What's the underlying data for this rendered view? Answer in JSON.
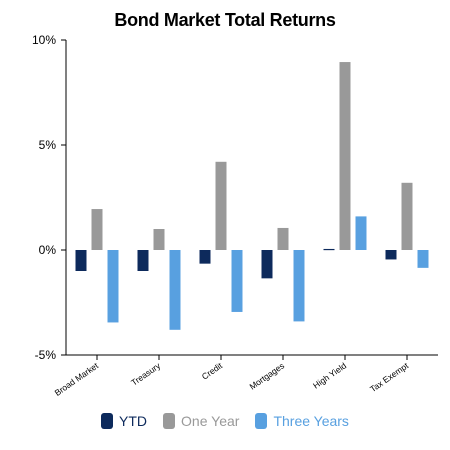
{
  "chart_data": {
    "type": "bar",
    "title": "Bond Market Total Returns",
    "categories": [
      "Broad Market",
      "Treasury",
      "Credit",
      "Mortgages",
      "High Yield",
      "Tax Exempt"
    ],
    "series": [
      {
        "name": "YTD",
        "color": "#0d2a5c",
        "values": [
          -1.0,
          -1.0,
          -0.65,
          -1.35,
          0.05,
          -0.45
        ]
      },
      {
        "name": "One Year",
        "color": "#999999",
        "values": [
          1.95,
          1.0,
          4.2,
          1.05,
          8.95,
          3.2
        ]
      },
      {
        "name": "Three Years",
        "color": "#58a0e0",
        "values": [
          -3.45,
          -3.8,
          -2.95,
          -3.4,
          1.6,
          -0.85
        ]
      }
    ],
    "y_ticks": [
      "10%",
      "5%",
      "0%",
      "-5%"
    ],
    "y_tick_values": [
      10,
      5,
      0,
      -5
    ],
    "ylim": [
      -5,
      10
    ],
    "grid": false,
    "legend_position": "bottom"
  }
}
